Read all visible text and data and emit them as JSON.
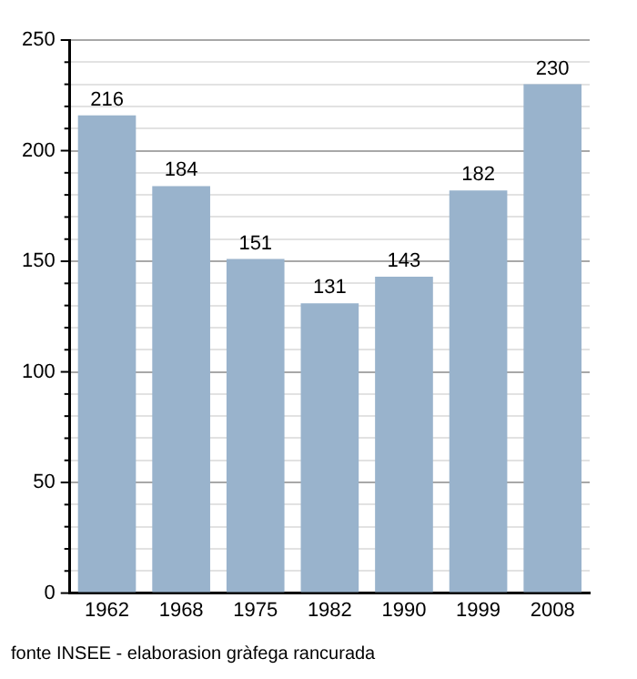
{
  "chart_data": {
    "type": "bar",
    "categories": [
      "1962",
      "1968",
      "1975",
      "1982",
      "1990",
      "1999",
      "2008"
    ],
    "values": [
      216,
      184,
      151,
      131,
      143,
      182,
      230
    ],
    "color": "#99b3cc",
    "data_labels": true,
    "grid": "y",
    "legend": false,
    "ylim": [
      0,
      250
    ],
    "yticks": [
      0,
      {
        "value": 10,
        "label": null
      },
      {
        "value": 20,
        "label": null
      },
      {
        "value": 30,
        "label": null
      },
      {
        "value": 40,
        "label": null
      },
      50,
      {
        "value": 60,
        "label": null
      },
      {
        "value": 70,
        "label": null
      },
      {
        "value": 80,
        "label": null
      },
      {
        "value": 90,
        "label": null
      },
      100,
      {
        "value": 110,
        "label": null
      },
      {
        "value": 120,
        "label": null
      },
      {
        "value": 130,
        "label": null
      },
      {
        "value": 140,
        "label": null
      },
      150,
      {
        "value": 160,
        "label": null
      },
      {
        "value": 170,
        "label": null
      },
      {
        "value": 180,
        "label": null
      },
      {
        "value": 190,
        "label": null
      },
      200,
      {
        "value": 210,
        "label": null
      },
      {
        "value": 220,
        "label": null
      },
      {
        "value": 230,
        "label": null
      },
      {
        "value": 240,
        "label": null
      },
      250
    ],
    "annotations": [
      "fonte INSEE - elaborasion gràfega rancurada"
    ]
  }
}
